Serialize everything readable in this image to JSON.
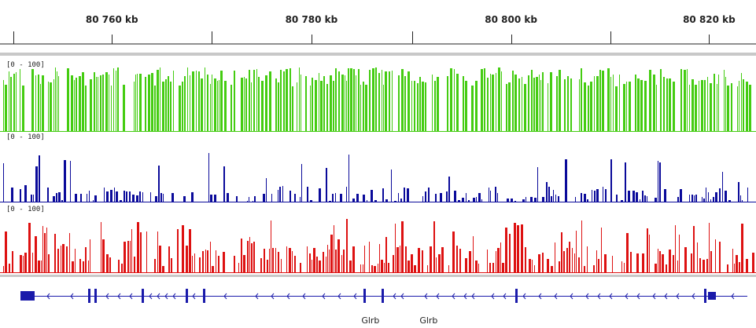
{
  "ruler": {
    "ticks": [
      {
        "label": "80 760 kb",
        "pos": 0.148
      },
      {
        "label": "80 780 kb",
        "pos": 0.412
      },
      {
        "label": "80 800 kb",
        "pos": 0.676
      },
      {
        "label": "80 820 kb",
        "pos": 0.938
      }
    ],
    "minor_ticks": [
      0.018,
      0.28,
      0.545,
      0.808
    ]
  },
  "tracks": [
    {
      "name": "track-1",
      "range": "[0 - 100]",
      "color": "#44cc11",
      "style": "dense"
    },
    {
      "name": "track-2",
      "range": "[0 - 100]",
      "color": "#0a0a9a",
      "style": "sparse"
    },
    {
      "name": "track-3",
      "range": "[0 - 100]",
      "color": "#dd1111",
      "style": "medium"
    }
  ],
  "genes": {
    "color": "#1a1aaa",
    "labels": [
      {
        "text": "Glrb",
        "pos": 0.49
      },
      {
        "text": "Glrb",
        "pos": 0.567
      }
    ]
  }
}
